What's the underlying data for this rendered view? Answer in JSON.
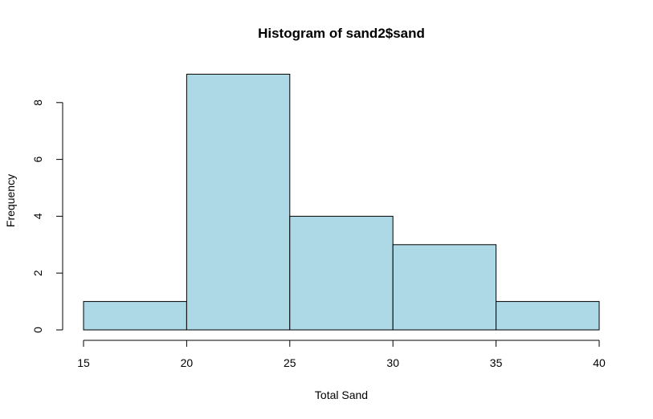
{
  "chart_data": {
    "type": "bar",
    "title": "Histogram of sand2$sand",
    "xlabel": "Total Sand",
    "ylabel": "Frequency",
    "bins": [
      {
        "from": 15,
        "to": 20,
        "count": 1
      },
      {
        "from": 20,
        "to": 25,
        "count": 9
      },
      {
        "from": 25,
        "to": 30,
        "count": 4
      },
      {
        "from": 30,
        "to": 35,
        "count": 3
      },
      {
        "from": 35,
        "to": 40,
        "count": 1
      }
    ],
    "xticks": [
      15,
      20,
      25,
      30,
      35,
      40
    ],
    "yticks": [
      0,
      2,
      4,
      6,
      8
    ],
    "xlim": [
      15,
      40
    ],
    "ylim": [
      0,
      9
    ],
    "grid": false,
    "legend": "none",
    "bar_color": "#add8e6",
    "edge_color": "#000000"
  }
}
